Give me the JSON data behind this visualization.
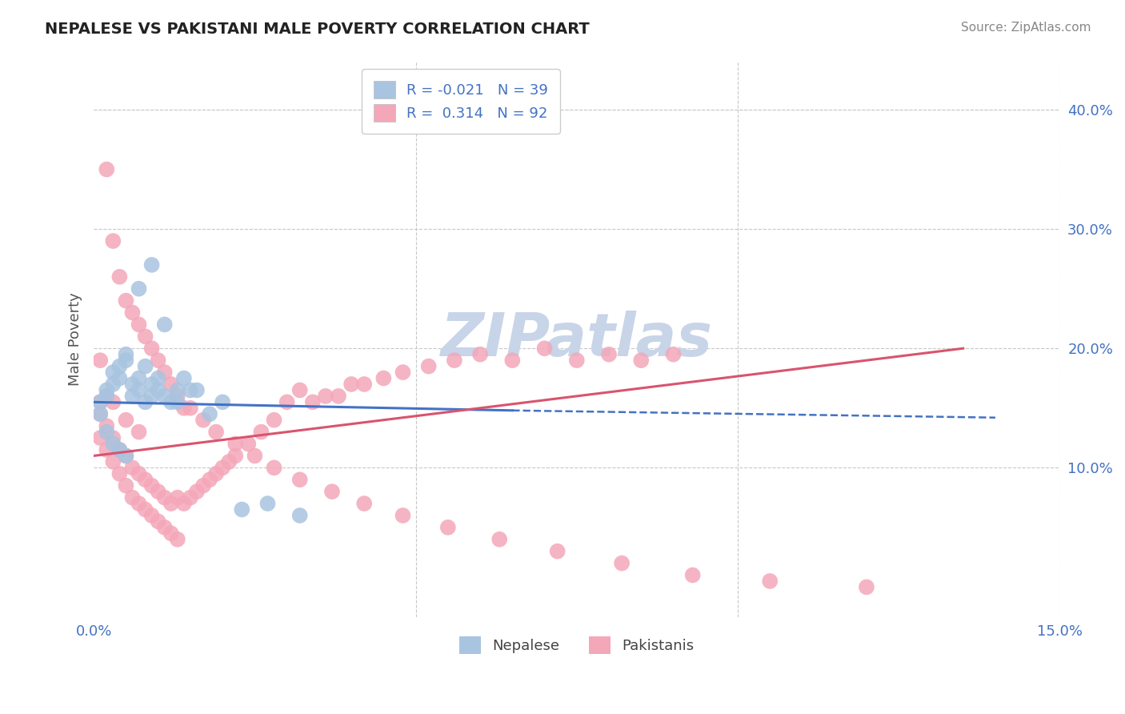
{
  "title": "NEPALESE VS PAKISTANI MALE POVERTY CORRELATION CHART",
  "source": "Source: ZipAtlas.com",
  "ylabel": "Male Poverty",
  "xlim": [
    0.0,
    0.15
  ],
  "ylim": [
    -0.025,
    0.44
  ],
  "xticks": [
    0.0,
    0.05,
    0.1,
    0.15
  ],
  "xticklabels": [
    "0.0%",
    "",
    "",
    "15.0%"
  ],
  "yticks": [
    0.1,
    0.2,
    0.3,
    0.4
  ],
  "yticklabels": [
    "10.0%",
    "20.0%",
    "30.0%",
    "40.0%"
  ],
  "watermark": "ZIPatlas",
  "nepalese_color": "#a8c4e0",
  "pakistani_color": "#f4a7b9",
  "nepalese_line_color": "#4472c4",
  "pakistani_line_color": "#d9546e",
  "legend_nepalese_label": "R = -0.021   N = 39",
  "legend_pakistani_label": "R =  0.314   N = 92",
  "background_color": "#ffffff",
  "grid_color": "#c8c8c8",
  "title_color": "#222222",
  "axis_label_color": "#555555",
  "tick_label_color": "#4472c4",
  "watermark_color": "#c8d4e8",
  "nepalese_x": [
    0.001,
    0.002,
    0.002,
    0.003,
    0.003,
    0.004,
    0.004,
    0.005,
    0.005,
    0.006,
    0.006,
    0.007,
    0.007,
    0.008,
    0.008,
    0.009,
    0.009,
    0.01,
    0.01,
    0.011,
    0.012,
    0.013,
    0.014,
    0.015,
    0.001,
    0.002,
    0.003,
    0.004,
    0.005,
    0.007,
    0.009,
    0.011,
    0.013,
    0.016,
    0.018,
    0.02,
    0.023,
    0.027,
    0.032
  ],
  "nepalese_y": [
    0.155,
    0.16,
    0.165,
    0.17,
    0.18,
    0.175,
    0.185,
    0.19,
    0.195,
    0.16,
    0.17,
    0.175,
    0.165,
    0.185,
    0.155,
    0.17,
    0.16,
    0.165,
    0.175,
    0.16,
    0.155,
    0.165,
    0.175,
    0.165,
    0.145,
    0.13,
    0.12,
    0.115,
    0.11,
    0.25,
    0.27,
    0.22,
    0.155,
    0.165,
    0.145,
    0.155,
    0.065,
    0.07,
    0.06
  ],
  "pakistani_x": [
    0.001,
    0.001,
    0.002,
    0.002,
    0.003,
    0.003,
    0.004,
    0.004,
    0.005,
    0.005,
    0.006,
    0.006,
    0.007,
    0.007,
    0.008,
    0.008,
    0.009,
    0.009,
    0.01,
    0.01,
    0.011,
    0.011,
    0.012,
    0.012,
    0.013,
    0.013,
    0.014,
    0.015,
    0.016,
    0.017,
    0.018,
    0.019,
    0.02,
    0.021,
    0.022,
    0.024,
    0.026,
    0.028,
    0.03,
    0.032,
    0.034,
    0.036,
    0.038,
    0.04,
    0.042,
    0.045,
    0.048,
    0.052,
    0.056,
    0.06,
    0.065,
    0.07,
    0.075,
    0.08,
    0.085,
    0.09,
    0.001,
    0.002,
    0.003,
    0.004,
    0.005,
    0.006,
    0.007,
    0.008,
    0.009,
    0.01,
    0.011,
    0.012,
    0.013,
    0.014,
    0.015,
    0.017,
    0.019,
    0.022,
    0.025,
    0.028,
    0.032,
    0.037,
    0.042,
    0.048,
    0.055,
    0.063,
    0.072,
    0.082,
    0.093,
    0.105,
    0.12,
    0.001,
    0.002,
    0.003,
    0.005,
    0.007
  ],
  "pakistani_y": [
    0.145,
    0.125,
    0.135,
    0.115,
    0.125,
    0.105,
    0.115,
    0.095,
    0.11,
    0.085,
    0.1,
    0.075,
    0.095,
    0.07,
    0.09,
    0.065,
    0.085,
    0.06,
    0.08,
    0.055,
    0.075,
    0.05,
    0.07,
    0.045,
    0.075,
    0.04,
    0.07,
    0.075,
    0.08,
    0.085,
    0.09,
    0.095,
    0.1,
    0.105,
    0.11,
    0.12,
    0.13,
    0.14,
    0.155,
    0.165,
    0.155,
    0.16,
    0.16,
    0.17,
    0.17,
    0.175,
    0.18,
    0.185,
    0.19,
    0.195,
    0.19,
    0.2,
    0.19,
    0.195,
    0.19,
    0.195,
    0.19,
    0.35,
    0.29,
    0.26,
    0.24,
    0.23,
    0.22,
    0.21,
    0.2,
    0.19,
    0.18,
    0.17,
    0.16,
    0.15,
    0.15,
    0.14,
    0.13,
    0.12,
    0.11,
    0.1,
    0.09,
    0.08,
    0.07,
    0.06,
    0.05,
    0.04,
    0.03,
    0.02,
    0.01,
    0.005,
    0.0,
    0.155,
    0.16,
    0.155,
    0.14,
    0.13
  ]
}
